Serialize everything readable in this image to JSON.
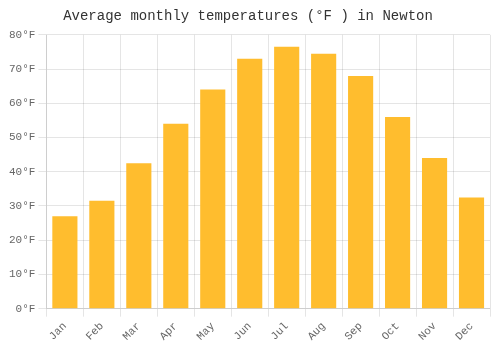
{
  "chart_data": {
    "type": "bar",
    "title": "Average monthly temperatures (°F ) in Newton",
    "categories": [
      "Jan",
      "Feb",
      "Mar",
      "Apr",
      "May",
      "Jun",
      "Jul",
      "Aug",
      "Sep",
      "Oct",
      "Nov",
      "Dec"
    ],
    "values": [
      27,
      31.5,
      42.5,
      54,
      64,
      73,
      76.5,
      74.5,
      68,
      56,
      44,
      32.5
    ],
    "color": "#FFBD2E",
    "ylim": [
      0,
      80
    ],
    "yticks": [
      {
        "value": 0,
        "label": "0°F"
      },
      {
        "value": 10,
        "label": "10°F"
      },
      {
        "value": 20,
        "label": "20°F"
      },
      {
        "value": 30,
        "label": "30°F"
      },
      {
        "value": 40,
        "label": "40°F"
      },
      {
        "value": 50,
        "label": "50°F"
      },
      {
        "value": 60,
        "label": "60°F"
      },
      {
        "value": 70,
        "label": "70°F"
      },
      {
        "value": 80,
        "label": "80°F"
      }
    ],
    "grid": true
  }
}
